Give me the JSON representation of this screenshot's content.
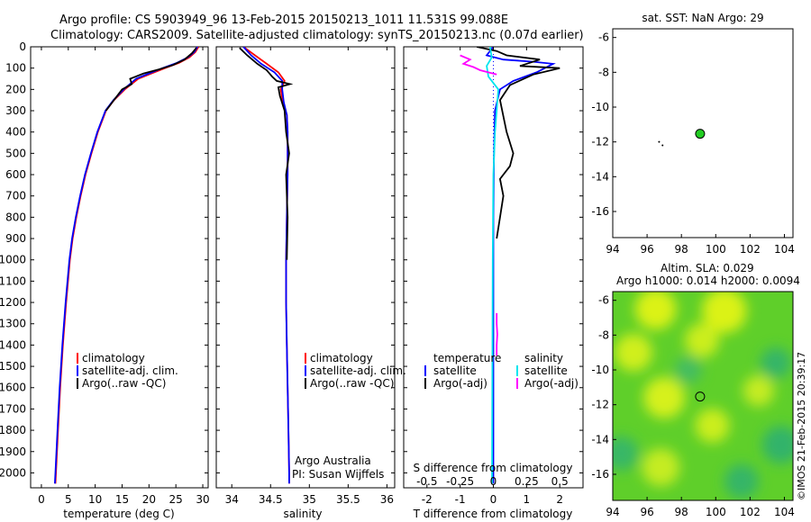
{
  "header": {
    "title_line1": "Argo profile: CS 5903949_96 13-Feb-2015 20150213_1011 11.531S 99.088E",
    "title_line2": "Climatology: CARS2009. Satellite-adjusted climatology: synTS_20150213.nc (0.07d earlier)"
  },
  "colors": {
    "climatology": "#ff0000",
    "satellite": "#0000ff",
    "argo": "#000000",
    "sat_salinity": "#00e5ee",
    "argo_salinity_adj": "#ff00ff",
    "marker_fill": "#22cc22"
  },
  "chart_data": [
    {
      "type": "line",
      "id": "temperature",
      "xlabel": "temperature (deg C)",
      "xlim": [
        -2,
        31
      ],
      "ylim": [
        2070,
        0
      ],
      "x_ticks": [
        0,
        5,
        10,
        15,
        20,
        25,
        30
      ],
      "y_ticks": [
        0,
        100,
        200,
        300,
        400,
        500,
        600,
        700,
        800,
        900,
        1000,
        1100,
        1200,
        1300,
        1400,
        1500,
        1600,
        1700,
        1800,
        1900,
        2000
      ],
      "legend": [
        "climatology",
        "satellite-adj. clim.",
        "Argo(..raw -QC)"
      ],
      "series": [
        {
          "name": "climatology",
          "color": "#ff0000",
          "points": [
            [
              29.2,
              0
            ],
            [
              28.6,
              25
            ],
            [
              27.5,
              50
            ],
            [
              25.6,
              75
            ],
            [
              23.0,
              100
            ],
            [
              20.5,
              125
            ],
            [
              18.0,
              150
            ],
            [
              15.5,
              200
            ],
            [
              13.5,
              250
            ],
            [
              12.0,
              300
            ],
            [
              10.5,
              400
            ],
            [
              9.3,
              500
            ],
            [
              8.2,
              600
            ],
            [
              7.3,
              700
            ],
            [
              6.5,
              800
            ],
            [
              5.8,
              900
            ],
            [
              5.3,
              1000
            ],
            [
              4.6,
              1200
            ],
            [
              4.0,
              1400
            ],
            [
              3.5,
              1600
            ],
            [
              3.1,
              1800
            ],
            [
              2.7,
              2000
            ],
            [
              2.6,
              2050
            ]
          ]
        },
        {
          "name": "satellite-adj. clim.",
          "color": "#0000ff",
          "points": [
            [
              29.0,
              0
            ],
            [
              28.4,
              25
            ],
            [
              27.2,
              50
            ],
            [
              25.2,
              75
            ],
            [
              22.5,
              100
            ],
            [
              20.0,
              125
            ],
            [
              17.6,
              150
            ],
            [
              15.3,
              200
            ],
            [
              13.4,
              250
            ],
            [
              11.9,
              300
            ],
            [
              10.4,
              400
            ],
            [
              9.2,
              500
            ],
            [
              8.1,
              600
            ],
            [
              7.2,
              700
            ],
            [
              6.4,
              800
            ],
            [
              5.7,
              900
            ],
            [
              5.2,
              1000
            ],
            [
              4.5,
              1200
            ],
            [
              3.9,
              1400
            ],
            [
              3.4,
              1600
            ],
            [
              3.0,
              1800
            ],
            [
              2.6,
              2000
            ],
            [
              2.5,
              2050
            ]
          ]
        },
        {
          "name": "Argo(..raw -QC)",
          "color": "#000000",
          "points": [
            [
              28.8,
              5
            ],
            [
              28.0,
              30
            ],
            [
              26.6,
              60
            ],
            [
              24.5,
              85
            ],
            [
              22.0,
              105
            ],
            [
              19.0,
              125
            ],
            [
              16.5,
              150
            ],
            [
              16.8,
              175
            ],
            [
              15.0,
              200
            ],
            [
              13.2,
              260
            ],
            [
              12.0,
              300
            ]
          ]
        }
      ]
    },
    {
      "type": "line",
      "id": "salinity",
      "xlabel": "salinity",
      "xlim": [
        33.8,
        36.1
      ],
      "ylim": [
        2070,
        0
      ],
      "x_ticks": [
        34,
        34.5,
        35,
        35.5,
        36
      ],
      "legend": [
        "climatology",
        "satellite-adj. clim.",
        "Argo(..raw -QC)"
      ],
      "annotation": [
        "Argo Australia",
        "PI: Susan Wijffels"
      ],
      "series": [
        {
          "name": "climatology",
          "color": "#ff0000",
          "points": [
            [
              34.15,
              0
            ],
            [
              34.3,
              40
            ],
            [
              34.45,
              80
            ],
            [
              34.6,
              120
            ],
            [
              34.68,
              160
            ],
            [
              34.63,
              200
            ],
            [
              34.66,
              260
            ],
            [
              34.71,
              320
            ],
            [
              34.72,
              400
            ],
            [
              34.72,
              600
            ],
            [
              34.71,
              800
            ],
            [
              34.7,
              1000
            ],
            [
              34.7,
              1200
            ],
            [
              34.71,
              1400
            ],
            [
              34.72,
              1600
            ],
            [
              34.73,
              1800
            ],
            [
              34.74,
              2000
            ],
            [
              34.74,
              2050
            ]
          ]
        },
        {
          "name": "satellite-adj. clim.",
          "color": "#0000ff",
          "points": [
            [
              34.15,
              0
            ],
            [
              34.25,
              40
            ],
            [
              34.38,
              80
            ],
            [
              34.55,
              120
            ],
            [
              34.65,
              160
            ],
            [
              34.65,
              200
            ],
            [
              34.67,
              260
            ],
            [
              34.71,
              320
            ],
            [
              34.72,
              400
            ],
            [
              34.72,
              600
            ],
            [
              34.71,
              800
            ],
            [
              34.7,
              1000
            ],
            [
              34.7,
              1200
            ],
            [
              34.71,
              1400
            ],
            [
              34.72,
              1600
            ],
            [
              34.73,
              1800
            ],
            [
              34.74,
              2000
            ],
            [
              34.74,
              2050
            ]
          ]
        },
        {
          "name": "Argo(..raw -QC)",
          "color": "#000000",
          "points": [
            [
              34.1,
              5
            ],
            [
              34.2,
              40
            ],
            [
              34.33,
              80
            ],
            [
              34.45,
              110
            ],
            [
              34.52,
              140
            ],
            [
              34.58,
              160
            ],
            [
              34.75,
              175
            ],
            [
              34.6,
              190
            ],
            [
              34.62,
              230
            ],
            [
              34.68,
              300
            ],
            [
              34.7,
              400
            ],
            [
              34.74,
              500
            ],
            [
              34.7,
              600
            ],
            [
              34.72,
              800
            ],
            [
              34.71,
              1000
            ]
          ]
        }
      ]
    },
    {
      "type": "line",
      "id": "difference",
      "xlabel": "T difference from climatology",
      "xlabel_top": "S difference from climatology",
      "xlim": [
        -2.7,
        2.7
      ],
      "ylim": [
        2070,
        0
      ],
      "x_ticks": [
        -2,
        -1,
        0,
        1,
        2
      ],
      "x_ticks_s": [
        -0.5,
        -0.25,
        0,
        0.25,
        0.5
      ],
      "legend_t_title": "temperature",
      "legend_s_title": "salinity",
      "legend": [
        "satellite",
        "Argo(-adj)",
        "satellite",
        "Argo(-adj)"
      ],
      "series": [
        {
          "name": "T satellite",
          "color": "#0000ff",
          "points": [
            [
              0,
              0
            ],
            [
              -0.2,
              40
            ],
            [
              0.3,
              60
            ],
            [
              1.2,
              70
            ],
            [
              1.8,
              80
            ],
            [
              1.3,
              120
            ],
            [
              0.6,
              160
            ],
            [
              0.2,
              200
            ],
            [
              0.05,
              300
            ],
            [
              0.02,
              500
            ],
            [
              0,
              800
            ],
            [
              0,
              1200
            ],
            [
              0,
              1600
            ],
            [
              0,
              2050
            ]
          ]
        },
        {
          "name": "T Argo(-adj)",
          "color": "#000000",
          "points": [
            [
              -0.5,
              0
            ],
            [
              0.1,
              20
            ],
            [
              0.4,
              40
            ],
            [
              1.4,
              60
            ],
            [
              0.8,
              90
            ],
            [
              2.0,
              100
            ],
            [
              1.2,
              130
            ],
            [
              0.5,
              180
            ],
            [
              0.2,
              250
            ],
            [
              0.4,
              400
            ],
            [
              0.6,
              500
            ],
            [
              0.5,
              560
            ],
            [
              0.2,
              620
            ],
            [
              0.3,
              700
            ],
            [
              0.2,
              800
            ],
            [
              0.1,
              900
            ]
          ]
        },
        {
          "name": "S satellite",
          "color": "#00e5ee",
          "points": [
            [
              -0.1,
              0
            ],
            [
              -0.05,
              50
            ],
            [
              -0.2,
              90
            ],
            [
              -0.15,
              140
            ],
            [
              0.15,
              200
            ],
            [
              0.12,
              260
            ],
            [
              0.05,
              400
            ],
            [
              0,
              600
            ],
            [
              -0.02,
              1000
            ],
            [
              -0.03,
              1500
            ],
            [
              -0.04,
              2050
            ]
          ]
        },
        {
          "name": "S Argo(-adj)",
          "color": "#ff00ff",
          "points": [
            [
              -1.0,
              40
            ],
            [
              -0.7,
              60
            ],
            [
              -0.9,
              80
            ],
            [
              -0.6,
              95
            ],
            [
              -0.4,
              110
            ],
            [
              0.1,
              130
            ]
          ]
        },
        {
          "name": "S Argo(-adj) deep",
          "color": "#ff00ff",
          "points": [
            [
              0.1,
              1250
            ],
            [
              0.1,
              1300
            ],
            [
              0.12,
              1350
            ],
            [
              0.1,
              1400
            ],
            [
              0.1,
              1450
            ]
          ]
        }
      ]
    },
    {
      "type": "scatter",
      "id": "sst-map",
      "title": "sat. SST: NaN Argo: 29",
      "xlim": [
        94,
        104.5
      ],
      "ylim": [
        -17.5,
        -5.5
      ],
      "x_ticks": [
        94,
        96,
        98,
        100,
        102,
        104
      ],
      "y_ticks": [
        -6,
        -8,
        -10,
        -12,
        -14,
        -16
      ],
      "points": [
        {
          "x": 99.088,
          "y": -11.531,
          "label": "float"
        }
      ],
      "track": [
        [
          96.7,
          -12.0
        ],
        [
          96.9,
          -12.2
        ]
      ]
    },
    {
      "type": "heatmap",
      "id": "sla-map",
      "title_line1": "Altim. SLA: 0.029",
      "title_line2": "Argo h1000: 0.014 h2000: 0.0094",
      "xlim": [
        94,
        104.5
      ],
      "ylim": [
        -17.5,
        -5.5
      ],
      "x_ticks": [
        94,
        96,
        98,
        100,
        102,
        104
      ],
      "y_ticks": [
        -6,
        -8,
        -10,
        -12,
        -14,
        -16
      ],
      "points": [
        {
          "x": 99.088,
          "y": -11.531,
          "label": "float"
        }
      ],
      "blobs": [
        {
          "x": 96.5,
          "y": -6.5,
          "r": 1.2,
          "level": 0.9
        },
        {
          "x": 100.5,
          "y": -6.6,
          "r": 1.3,
          "level": 0.9
        },
        {
          "x": 95.2,
          "y": -9.0,
          "r": 1.1,
          "level": 0.8
        },
        {
          "x": 99.2,
          "y": -8.3,
          "r": 1.0,
          "level": 0.75
        },
        {
          "x": 97.0,
          "y": -11.6,
          "r": 1.2,
          "level": 0.85
        },
        {
          "x": 99.8,
          "y": -13.2,
          "r": 1.0,
          "level": 0.75
        },
        {
          "x": 96.8,
          "y": -15.6,
          "r": 1.1,
          "level": 0.7
        },
        {
          "x": 102.5,
          "y": -11.2,
          "r": 0.9,
          "level": 0.7
        },
        {
          "x": 103.5,
          "y": -9.6,
          "r": 0.9,
          "level": 0.15
        },
        {
          "x": 103.8,
          "y": -14.3,
          "r": 1.1,
          "level": 0.1
        },
        {
          "x": 101.5,
          "y": -16.4,
          "r": 1.0,
          "level": 0.15
        },
        {
          "x": 94.5,
          "y": -14.8,
          "r": 1.0,
          "level": 0.2
        },
        {
          "x": 98.4,
          "y": -10.0,
          "r": 0.8,
          "level": 0.35
        }
      ]
    }
  ],
  "footer": {
    "credit": "©IMOS 21-Feb-2015 20:39:17"
  }
}
